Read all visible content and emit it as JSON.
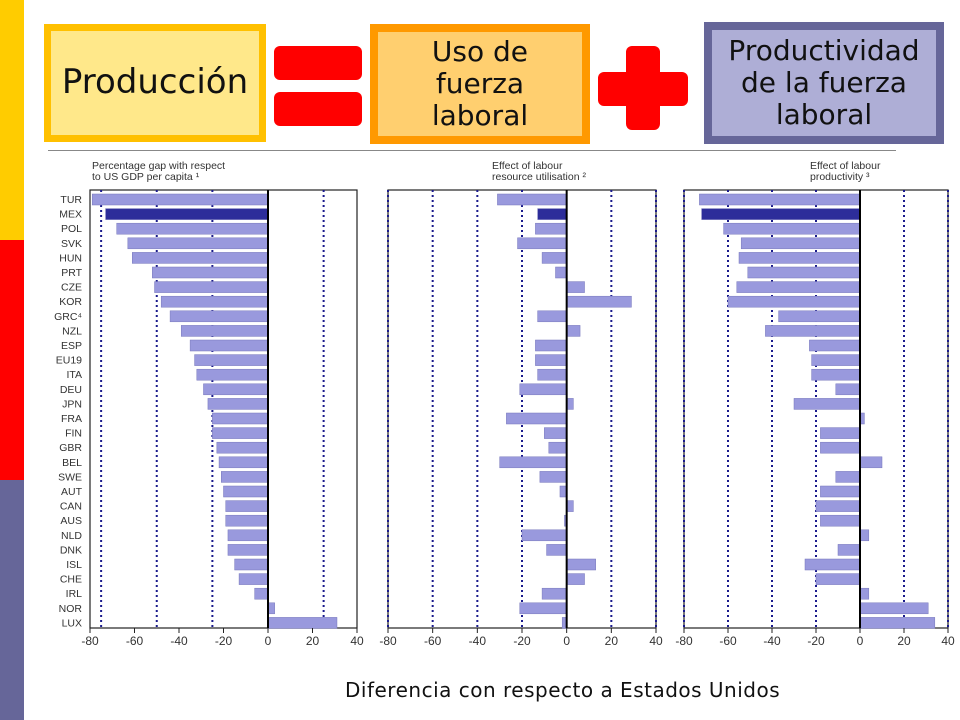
{
  "slide": {
    "box_produccion": "Producción",
    "box_uso": [
      "Uso de",
      "fuerza",
      "laboral"
    ],
    "box_productividad": [
      "Productividad",
      "de la fuerza",
      "laboral"
    ],
    "footer": "Diferencia con respecto a Estados Unidos",
    "colors": {
      "stripe_yellow": "#ffcc00",
      "stripe_red": "#ff0000",
      "stripe_blue": "#666699",
      "bar": "#9999dd",
      "bar_highlight": "#2d2d9a",
      "symbols": "#ff0000"
    },
    "symbols": [
      "equals-sign",
      "plus-sign"
    ]
  },
  "chart_data": [
    {
      "type": "bar",
      "orientation": "horizontal",
      "title": [
        "Percentage gap with respect",
        "to US GDP per capita ¹"
      ],
      "categories": [
        "TUR",
        "MEX",
        "POL",
        "SVK",
        "HUN",
        "PRT",
        "CZE",
        "KOR",
        "GRC⁴",
        "NZL",
        "ESP",
        "EU19",
        "ITA",
        "DEU",
        "JPN",
        "FRA",
        "FIN",
        "GBR",
        "BEL",
        "SWE",
        "AUT",
        "CAN",
        "AUS",
        "NLD",
        "DNK",
        "ISL",
        "CHE",
        "IRL",
        "NOR",
        "LUX"
      ],
      "values": [
        -79,
        -73,
        -68,
        -63,
        -61,
        -52,
        -51,
        -48,
        -44,
        -39,
        -35,
        -33,
        -32,
        -29,
        -27,
        -25,
        -25,
        -23,
        -22,
        -21,
        -20,
        -19,
        -19,
        -18,
        -18,
        -15,
        -13,
        -6,
        3,
        31
      ],
      "highlight": [
        "MEX"
      ],
      "xlim": [
        -80,
        40
      ],
      "xticks": [
        -80,
        -60,
        -40,
        -20,
        0,
        20,
        40
      ],
      "reference_lines": [
        -75,
        -50,
        -25,
        0,
        25
      ],
      "grid": false
    },
    {
      "type": "bar",
      "orientation": "horizontal",
      "title": [
        "Effect of labour",
        "resource utilisation ²"
      ],
      "categories": [
        "TUR",
        "MEX",
        "POL",
        "SVK",
        "HUN",
        "PRT",
        "CZE",
        "KOR",
        "GRC⁴",
        "NZL",
        "ESP",
        "EU19",
        "ITA",
        "DEU",
        "JPN",
        "FRA",
        "FIN",
        "GBR",
        "BEL",
        "SWE",
        "AUT",
        "CAN",
        "AUS",
        "NLD",
        "DNK",
        "ISL",
        "CHE",
        "IRL",
        "NOR",
        "LUX"
      ],
      "values": [
        -31,
        -13,
        -14,
        -22,
        -11,
        -5,
        8,
        29,
        -13,
        6,
        -14,
        -14,
        -13,
        -21,
        3,
        -27,
        -10,
        -8,
        -30,
        -12,
        -3,
        3,
        -1,
        -20,
        -9,
        13,
        8,
        -11,
        -21,
        -2
      ],
      "highlight": [
        "MEX"
      ],
      "xlim": [
        -80,
        40
      ],
      "xticks": [
        -80,
        -60,
        -40,
        -20,
        0,
        20,
        40
      ],
      "reference_lines": [
        -80,
        -60,
        -40,
        -20,
        0,
        20,
        40
      ],
      "grid": false
    },
    {
      "type": "bar",
      "orientation": "horizontal",
      "title": [
        "Effect of labour",
        "productivity ³"
      ],
      "categories": [
        "TUR",
        "MEX",
        "POL",
        "SVK",
        "HUN",
        "PRT",
        "CZE",
        "KOR",
        "GRC⁴",
        "NZL",
        "ESP",
        "EU19",
        "ITA",
        "DEU",
        "JPN",
        "FRA",
        "FIN",
        "GBR",
        "BEL",
        "SWE",
        "AUT",
        "CAN",
        "AUS",
        "NLD",
        "DNK",
        "ISL",
        "CHE",
        "IRL",
        "NOR",
        "LUX"
      ],
      "values": [
        -73,
        -72,
        -62,
        -54,
        -55,
        -51,
        -56,
        -60,
        -37,
        -43,
        -23,
        -22,
        -22,
        -11,
        -30,
        2,
        -18,
        -18,
        10,
        -11,
        -18,
        -20,
        -18,
        4,
        -10,
        -25,
        -20,
        4,
        31,
        34
      ],
      "highlight": [
        "MEX"
      ],
      "xlim": [
        -80,
        40
      ],
      "xticks": [
        -80,
        -60,
        -40,
        -20,
        0,
        20,
        40
      ],
      "reference_lines": [
        -80,
        -60,
        -40,
        -20,
        0,
        20,
        40
      ],
      "grid": false
    }
  ]
}
